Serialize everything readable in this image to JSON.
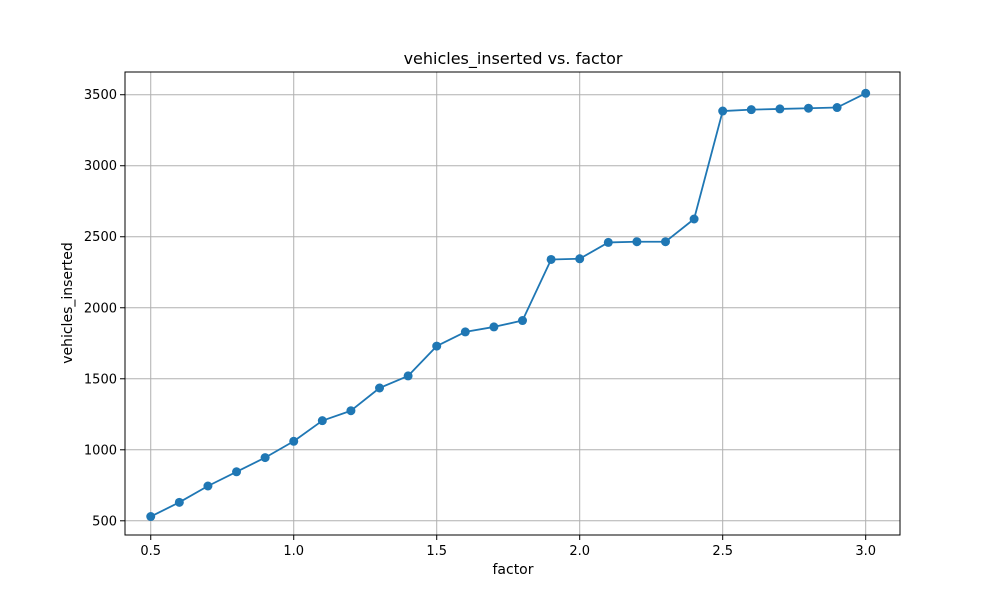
{
  "chart_data": {
    "type": "line",
    "title": "vehicles_inserted vs. factor",
    "xlabel": "factor",
    "ylabel": "vehicles_inserted",
    "xlim": [
      0.41,
      3.12
    ],
    "ylim": [
      400,
      3660
    ],
    "xticks": [
      0.5,
      1.0,
      1.5,
      2.0,
      2.5,
      3.0
    ],
    "xtick_labels": [
      "0.5",
      "1.0",
      "1.5",
      "2.0",
      "2.5",
      "3.0"
    ],
    "yticks": [
      500,
      1000,
      1500,
      2000,
      2500,
      3000,
      3500
    ],
    "ytick_labels": [
      "500",
      "1000",
      "1500",
      "2000",
      "2500",
      "3000",
      "3500"
    ],
    "grid": true,
    "markers": true,
    "series": [
      {
        "color": "#1f77b4",
        "x": [
          0.5,
          0.6,
          0.7,
          0.8,
          0.9,
          1.0,
          1.1,
          1.2,
          1.3,
          1.4,
          1.5,
          1.6,
          1.7,
          1.8,
          1.9,
          2.0,
          2.1,
          2.2,
          2.3,
          2.4,
          2.5,
          2.6,
          2.7,
          2.8,
          2.9,
          3.0
        ],
        "y": [
          530,
          630,
          745,
          845,
          945,
          1060,
          1205,
          1275,
          1435,
          1520,
          1730,
          1830,
          1865,
          1910,
          2340,
          2345,
          2460,
          2465,
          2465,
          2625,
          3385,
          3395,
          3400,
          3405,
          3410,
          3510
        ]
      }
    ]
  }
}
